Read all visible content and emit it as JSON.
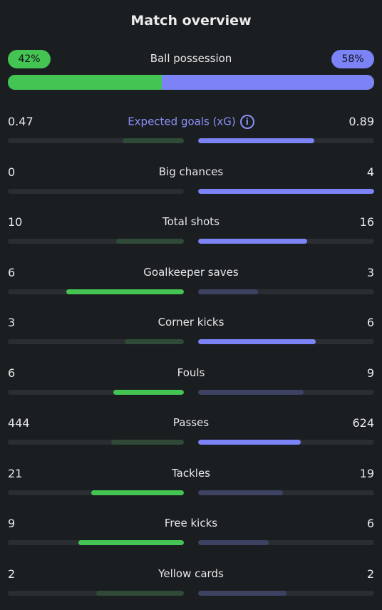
{
  "title": "Match overview",
  "colors": {
    "home_strong": "#44c453",
    "home_weak": "#2f4a37",
    "away_strong": "#7b83f7",
    "away_weak": "#3d4262"
  },
  "possession": {
    "label": "Ball possession",
    "home": "42%",
    "away": "58%",
    "home_fraction": 0.42
  },
  "stats": [
    {
      "label": "Expected goals (xG)",
      "home": "0.47",
      "away": "0.89",
      "home_fill": 0.35,
      "away_fill": 0.66,
      "winner": "away",
      "info": "i",
      "highlight": true
    },
    {
      "label": "Big chances",
      "home": "0",
      "away": "4",
      "home_fill": 0,
      "away_fill": 1,
      "winner": "away"
    },
    {
      "label": "Total shots",
      "home": "10",
      "away": "16",
      "home_fill": 0.385,
      "away_fill": 0.62,
      "winner": "away"
    },
    {
      "label": "Goalkeeper saves",
      "home": "6",
      "away": "3",
      "home_fill": 0.67,
      "away_fill": 0.34,
      "winner": "home"
    },
    {
      "label": "Corner kicks",
      "home": "3",
      "away": "6",
      "home_fill": 0.335,
      "away_fill": 0.67,
      "winner": "away"
    },
    {
      "label": "Fouls",
      "home": "6",
      "away": "9",
      "home_fill": 0.4,
      "away_fill": 0.6,
      "winner": "home"
    },
    {
      "label": "Passes",
      "home": "444",
      "away": "624",
      "home_fill": 0.415,
      "away_fill": 0.585,
      "winner": "away"
    },
    {
      "label": "Tackles",
      "home": "21",
      "away": "19",
      "home_fill": 0.525,
      "away_fill": 0.48,
      "winner": "home"
    },
    {
      "label": "Free kicks",
      "home": "9",
      "away": "6",
      "home_fill": 0.6,
      "away_fill": 0.4,
      "winner": "home"
    },
    {
      "label": "Yellow cards",
      "home": "2",
      "away": "2",
      "home_fill": 0.5,
      "away_fill": 0.5,
      "winner": "none"
    }
  ]
}
